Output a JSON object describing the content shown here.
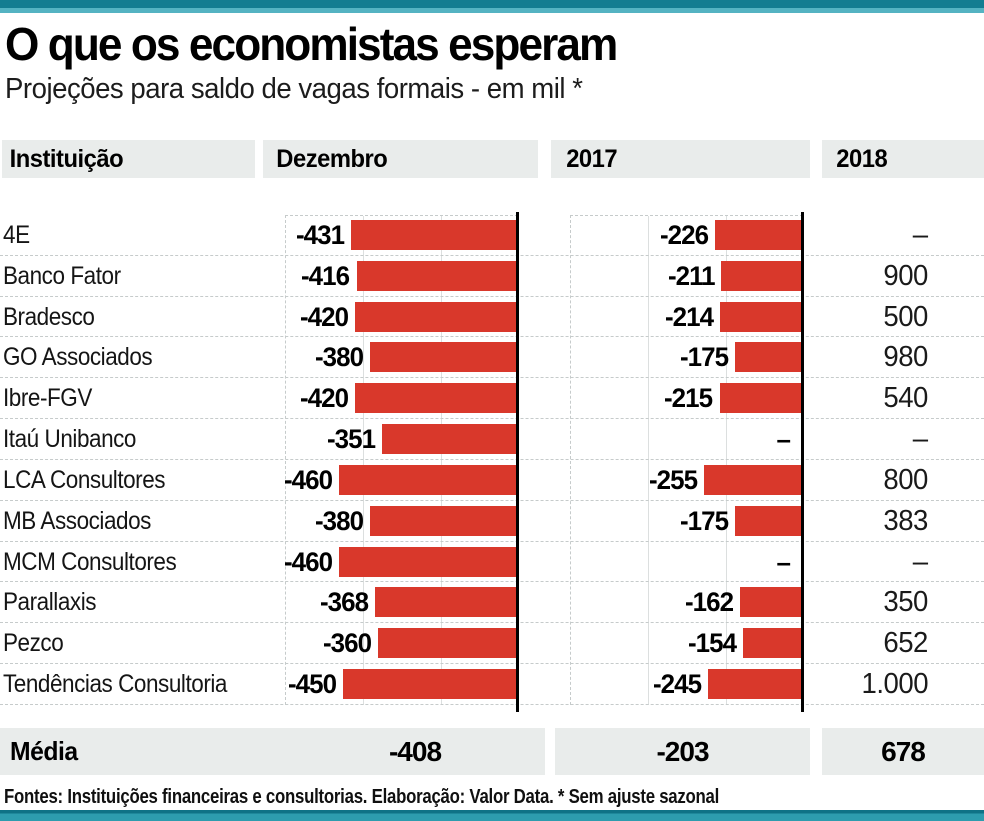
{
  "page": {
    "title": "O que os economistas esperam",
    "subtitle": "Projeções para saldo de vagas formais - em mil *",
    "footer": "Fontes: Instituições financeiras e consultorias. Elaboração: Valor Data. * Sem ajuste sazonal"
  },
  "table": {
    "headers": {
      "institution": "Instituição",
      "dezembro": "Dezembro",
      "y2017": "2017",
      "y2018": "2018"
    }
  },
  "chart_data": {
    "type": "bar",
    "orientation": "horizontal",
    "xlim": [
      -600,
      0
    ],
    "gridline_step": 200,
    "grid": true,
    "missing_marker": "–",
    "categories": [
      "4E",
      "Banco Fator",
      "Bradesco",
      "GO Associados",
      "Ibre-FGV",
      "Itaú Unibanco",
      "LCA Consultores",
      "MB Associados",
      "MCM Consultores",
      "Parallaxis",
      "Pezco",
      "Tendências Consultoria"
    ],
    "series": [
      {
        "name": "Dezembro",
        "values": [
          -431,
          -416,
          -420,
          -380,
          -420,
          -351,
          -460,
          -380,
          -460,
          -368,
          -360,
          -450
        ],
        "labels": [
          "-431",
          "-416",
          "-420",
          "-380",
          "-420",
          "-351",
          "-460",
          "-380",
          "-460",
          "-368",
          "-360",
          "-450"
        ]
      },
      {
        "name": "2017",
        "values": [
          -226,
          -211,
          -214,
          -175,
          -215,
          null,
          -255,
          -175,
          null,
          -162,
          -154,
          -245
        ],
        "labels": [
          "-226",
          "-211",
          "-214",
          "-175",
          "-215",
          "–",
          "-255",
          "-175",
          "–",
          "-162",
          "-154",
          "-245"
        ]
      },
      {
        "name": "2018",
        "values": [
          null,
          900,
          500,
          980,
          540,
          null,
          800,
          383,
          null,
          350,
          652,
          1000
        ],
        "labels": [
          "–",
          "900",
          "500",
          "980",
          "540",
          "–",
          "800",
          "383",
          "–",
          "350",
          "652",
          "1.000"
        ]
      }
    ]
  },
  "summary": {
    "label": "Média",
    "dezembro": "-408",
    "y2017": "-203",
    "y2018": "678"
  },
  "colors": {
    "accent_teal": "#137d91",
    "accent_teal_light": "#54b3c2",
    "bar_red": "#d9382b",
    "band_gray": "#e9eceb",
    "separator_dash": "#c6cbcb",
    "gridline": "#dcdfdf",
    "text": "#111111"
  }
}
